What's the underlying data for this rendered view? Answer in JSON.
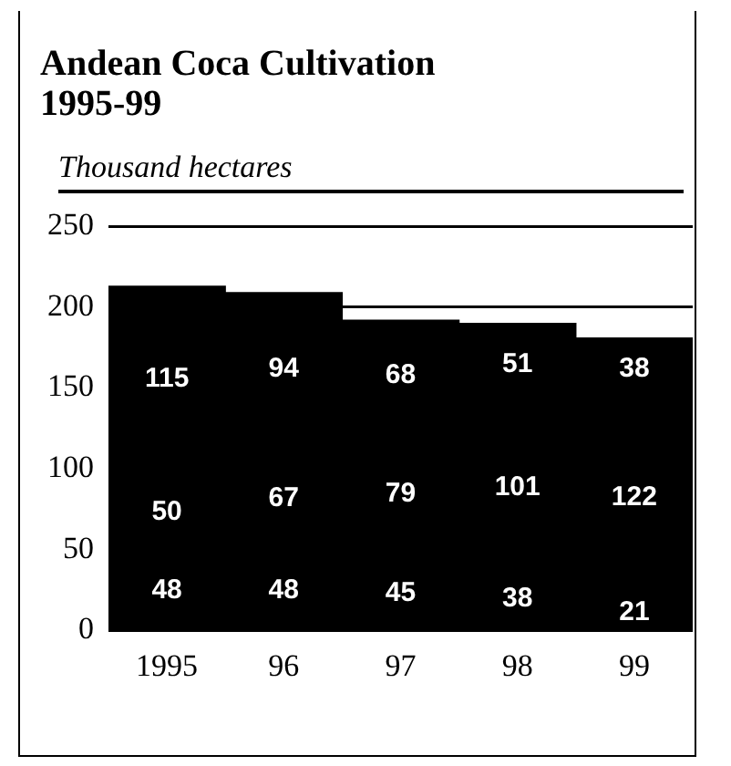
{
  "chart_data": {
    "type": "bar",
    "title": "Andean Coca Cultivation 1995-99",
    "ylabel": "Thousand hectares",
    "categories": [
      "1995",
      "96",
      "97",
      "98",
      "99"
    ],
    "stacked": true,
    "data_labels": true,
    "grid": "y",
    "legend": false,
    "ylim": [
      0,
      250
    ],
    "yticks": [
      0,
      50,
      100,
      150,
      200,
      250
    ],
    "series": [
      {
        "color": "#000000",
        "values": [
          48,
          48,
          45,
          38,
          21
        ]
      },
      {
        "color": "#000000",
        "values": [
          50,
          67,
          79,
          101,
          122
        ]
      },
      {
        "color": "#000000",
        "values": [
          115,
          94,
          68,
          51,
          38
        ]
      }
    ]
  }
}
